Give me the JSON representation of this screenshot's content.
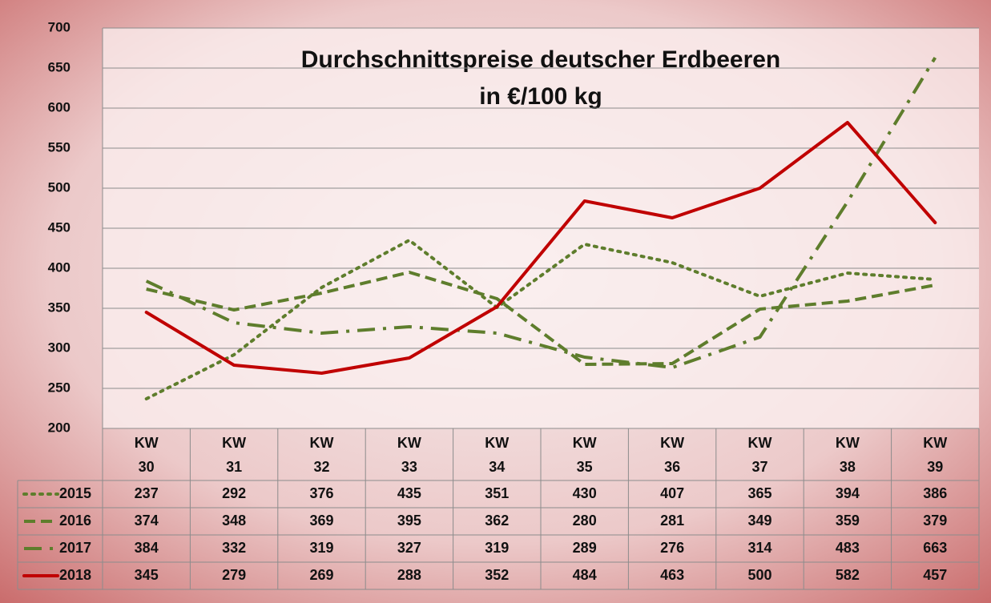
{
  "chart_data": {
    "type": "line",
    "title": "Durchschnittspreise deutscher Erdbeeren",
    "subtitle": "in €/100 kg",
    "categories": [
      "KW 30",
      "KW 31",
      "KW 32",
      "KW 33",
      "KW 34",
      "KW 35",
      "KW 36",
      "KW 37",
      "KW 38",
      "KW 39"
    ],
    "series": [
      {
        "name": "2015",
        "color": "#5e7d2c",
        "line_style": "dotted",
        "values": [
          237,
          292,
          376,
          435,
          351,
          430,
          407,
          365,
          394,
          386
        ]
      },
      {
        "name": "2016",
        "color": "#5e7d2c",
        "line_style": "dashed",
        "values": [
          374,
          348,
          369,
          395,
          362,
          280,
          281,
          349,
          359,
          379
        ]
      },
      {
        "name": "2017",
        "color": "#5e7d2c",
        "line_style": "dashdot",
        "values": [
          384,
          332,
          319,
          327,
          319,
          289,
          276,
          314,
          483,
          663
        ]
      },
      {
        "name": "2018",
        "color": "#c00000",
        "line_style": "solid",
        "values": [
          345,
          279,
          269,
          288,
          352,
          484,
          463,
          500,
          582,
          457
        ]
      }
    ],
    "ylim": [
      200,
      700
    ],
    "yticks": [
      200,
      250,
      300,
      350,
      400,
      450,
      500,
      550,
      600,
      650,
      700
    ],
    "grid": true,
    "data_table": true
  }
}
